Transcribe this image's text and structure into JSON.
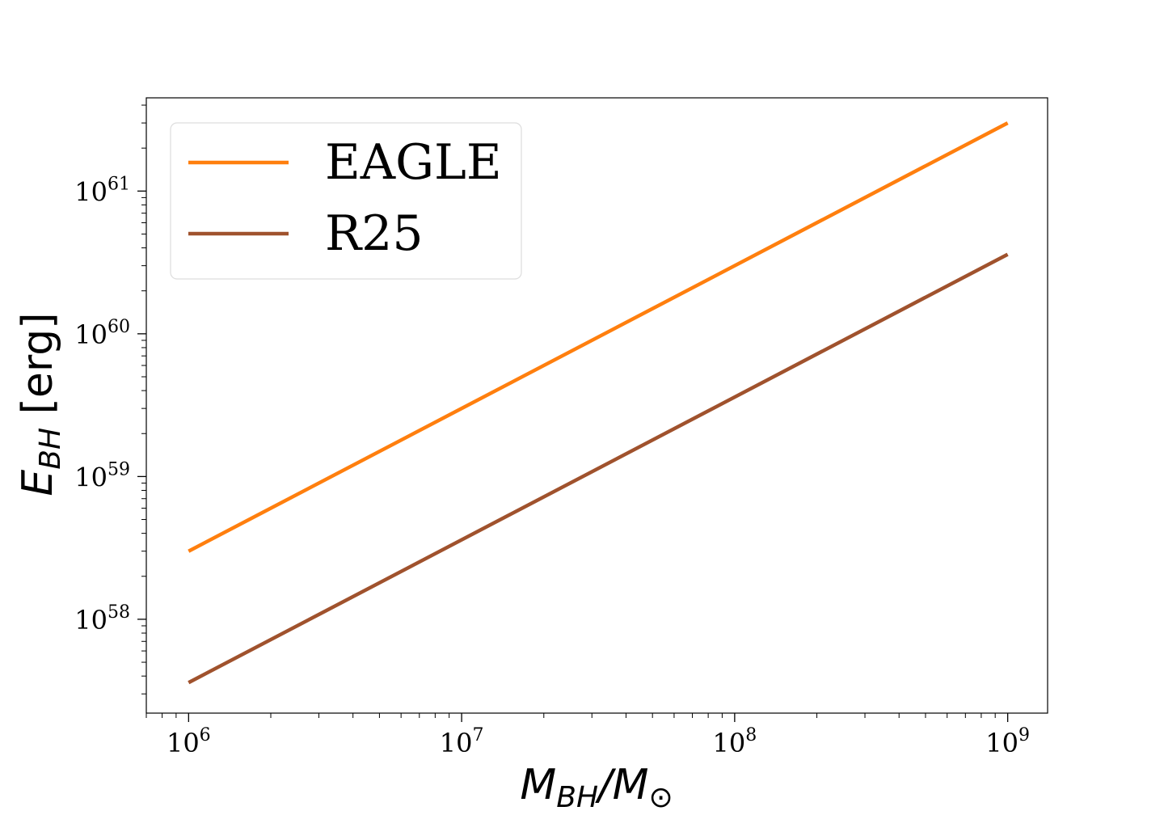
{
  "chart_data": {
    "type": "line",
    "xscale": "log",
    "yscale": "log",
    "xlim": [
      700000,
      1400000000
    ],
    "ylim": [
      2.2e+57,
      4.5e+61
    ],
    "xticks": [
      {
        "value": 1000000,
        "base": "10",
        "exp": "6"
      },
      {
        "value": 10000000,
        "base": "10",
        "exp": "7"
      },
      {
        "value": 100000000,
        "base": "10",
        "exp": "8"
      },
      {
        "value": 1000000000,
        "base": "10",
        "exp": "9"
      }
    ],
    "yticks": [
      {
        "value": 1e+58,
        "base": "10",
        "exp": "58"
      },
      {
        "value": 1e+59,
        "base": "10",
        "exp": "59"
      },
      {
        "value": 1e+60,
        "base": "10",
        "exp": "60"
      },
      {
        "value": 1e+61,
        "base": "10",
        "exp": "61"
      }
    ],
    "xlabel": {
      "main": "M",
      "sub": "BH",
      "rest": "/M",
      "sun": "⊙"
    },
    "ylabel": {
      "main": "E",
      "sub": "BH",
      "rest": " [erg]"
    },
    "grid": false,
    "legend": {
      "position": "top-left"
    },
    "series": [
      {
        "name": "EAGLE",
        "color": "#ff7f0e",
        "x": [
          1000000,
          1000000000
        ],
        "y": [
          3e+58,
          3e+61
        ]
      },
      {
        "name": "R25",
        "color": "#a0522d",
        "x": [
          1000000,
          1000000000
        ],
        "y": [
          3.6e+57,
          3.6e+60
        ]
      }
    ]
  }
}
